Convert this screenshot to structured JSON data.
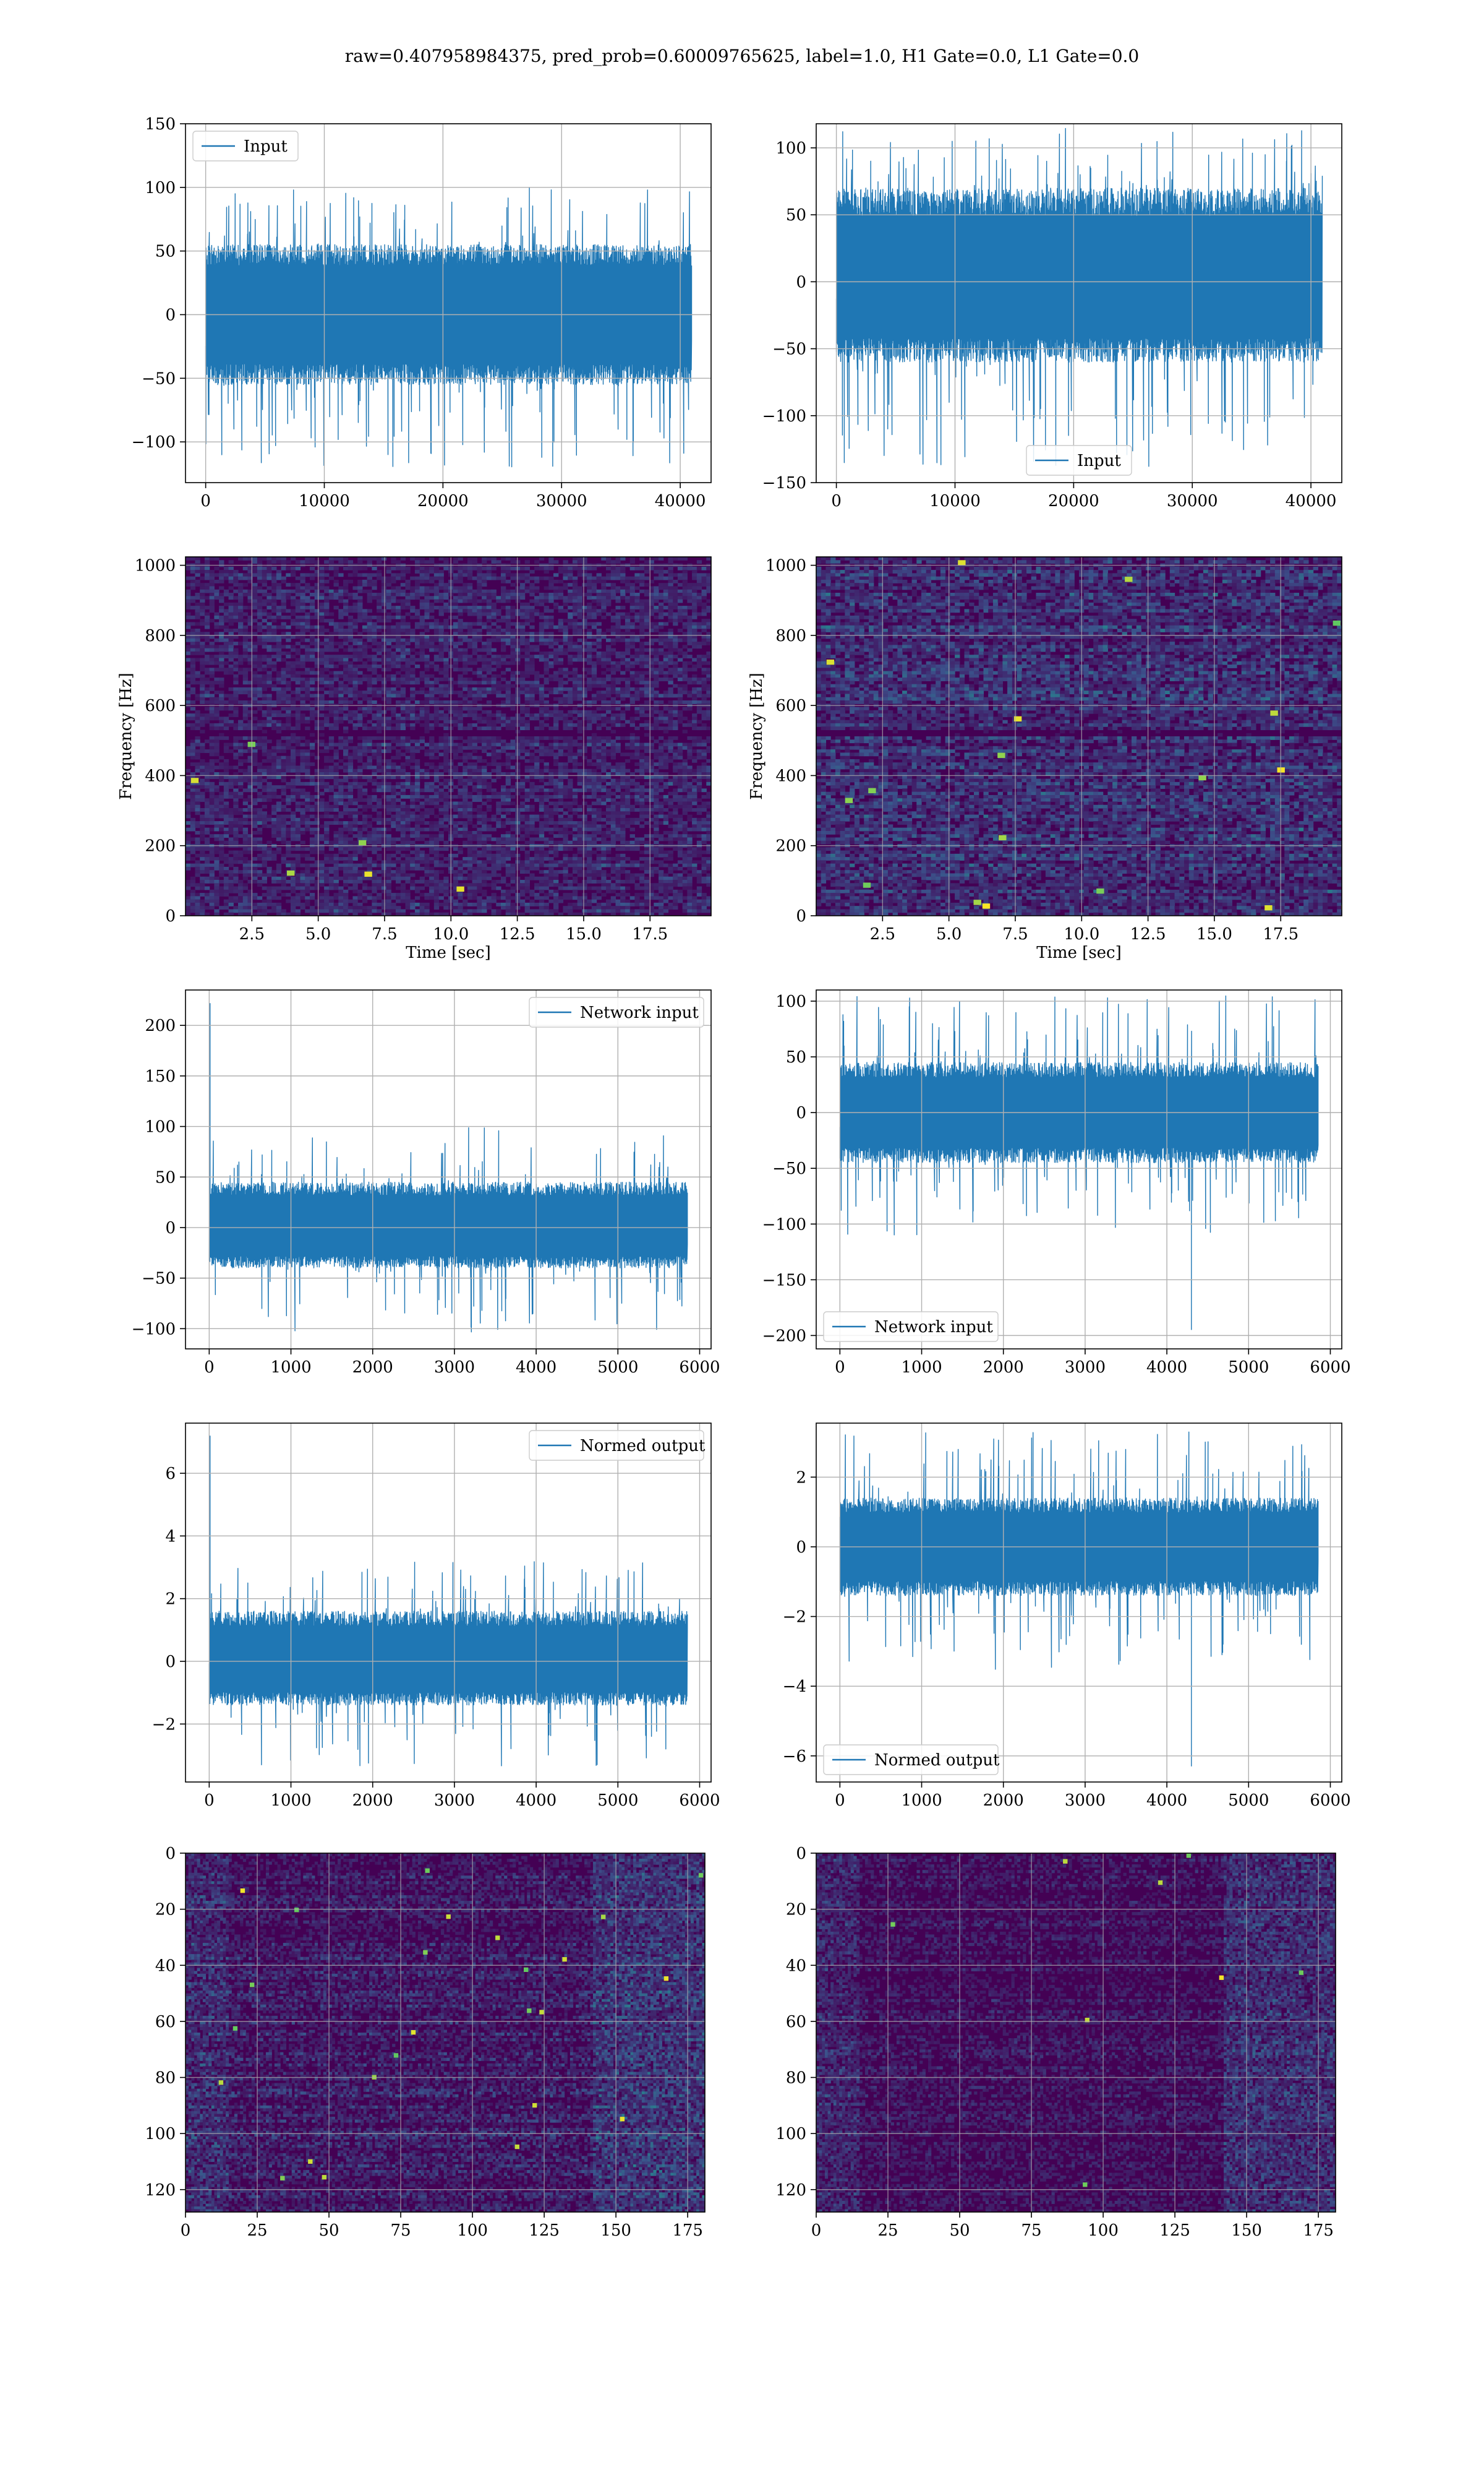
{
  "figure": {
    "suptitle": "raw=0.407958984375, pred_prob=0.60009765625, label=1.0, H1 Gate=0.0, L1 Gate=0.0"
  },
  "colors": {
    "line": "#1f77b4",
    "grid": "#b0b0b0",
    "viridis": [
      "#440154",
      "#3b528b",
      "#21918c",
      "#5ec962",
      "#fde725"
    ]
  },
  "chart_data": [
    {
      "id": "r0c0",
      "type": "line",
      "title": "",
      "xlabel": "",
      "ylabel": "",
      "legend": "Input",
      "legend_loc": "top-left",
      "xlim": [
        -1700,
        42600
      ],
      "ylim": [
        -132,
        150
      ],
      "xticks": [
        0,
        10000,
        20000,
        30000,
        40000
      ],
      "yticks": [
        -100,
        -50,
        0,
        50,
        100,
        150
      ],
      "x_range": [
        0,
        40960
      ],
      "n": 1600,
      "band": [
        -55,
        55
      ],
      "peaks": [
        100,
        -120
      ],
      "spikes": [],
      "seed": 11
    },
    {
      "id": "r0c1",
      "type": "line",
      "title": "",
      "xlabel": "",
      "ylabel": "",
      "legend": "Input",
      "legend_loc": "bottom-center",
      "xlim": [
        -1700,
        42600
      ],
      "ylim": [
        -150,
        118
      ],
      "xticks": [
        0,
        10000,
        20000,
        30000,
        40000
      ],
      "yticks": [
        -150,
        -100,
        -50,
        0,
        50,
        100
      ],
      "x_range": [
        0,
        40960
      ],
      "n": 1600,
      "band": [
        -60,
        70
      ],
      "peaks": [
        115,
        -138
      ],
      "spikes": [],
      "seed": 23
    },
    {
      "id": "r1c0",
      "type": "heatmap",
      "title": "",
      "xlabel": "Time [sec]",
      "ylabel": "Frequency [Hz]",
      "xlim": [
        0,
        19.8
      ],
      "ylim": [
        0,
        1024
      ],
      "xticks": [
        2.5,
        5.0,
        7.5,
        10.0,
        12.5,
        15.0,
        17.5
      ],
      "yticks": [
        0,
        200,
        400,
        600,
        800,
        1000
      ],
      "nx": 110,
      "ny": 110,
      "level": 0.22,
      "hotspots": 6,
      "bands": [
        0.48,
        0.49
      ],
      "seed": 31
    },
    {
      "id": "r1c1",
      "type": "heatmap",
      "title": "",
      "xlabel": "Time [sec]",
      "ylabel": "Frequency [Hz]",
      "xlim": [
        0,
        19.8
      ],
      "ylim": [
        0,
        1024
      ],
      "xticks": [
        2.5,
        5.0,
        7.5,
        10.0,
        12.5,
        15.0,
        17.5
      ],
      "yticks": [
        0,
        200,
        400,
        600,
        800,
        1000
      ],
      "nx": 110,
      "ny": 110,
      "level": 0.32,
      "hotspots": 18,
      "bands": [
        0.48,
        0.49
      ],
      "seed": 47
    },
    {
      "id": "r2c0",
      "type": "line",
      "title": "",
      "xlabel": "",
      "ylabel": "",
      "legend": "Network input",
      "legend_loc": "top-right",
      "xlim": [
        -290,
        6140
      ],
      "ylim": [
        -120,
        235
      ],
      "xticks": [
        0,
        1000,
        2000,
        3000,
        4000,
        5000,
        6000
      ],
      "yticks": [
        -100,
        -50,
        0,
        50,
        100,
        150,
        200
      ],
      "x_range": [
        0,
        5850
      ],
      "n": 1400,
      "band": [
        -40,
        45
      ],
      "peaks": [
        100,
        -105
      ],
      "spikes": [
        [
          10,
          222
        ]
      ],
      "seed": 53
    },
    {
      "id": "r2c1",
      "type": "line",
      "title": "",
      "xlabel": "",
      "ylabel": "",
      "legend": "Network input",
      "legend_loc": "bottom-left",
      "xlim": [
        -290,
        6140
      ],
      "ylim": [
        -212,
        110
      ],
      "xticks": [
        0,
        1000,
        2000,
        3000,
        4000,
        5000,
        6000
      ],
      "yticks": [
        -200,
        -150,
        -100,
        -50,
        0,
        50,
        100
      ],
      "x_range": [
        0,
        5850
      ],
      "n": 1400,
      "band": [
        -45,
        45
      ],
      "peaks": [
        105,
        -110
      ],
      "spikes": [
        [
          4300,
          -195
        ]
      ],
      "seed": 67
    },
    {
      "id": "r3c0",
      "type": "line",
      "title": "",
      "xlabel": "",
      "ylabel": "",
      "legend": "Normed output",
      "legend_loc": "top-right",
      "xlim": [
        -290,
        6140
      ],
      "ylim": [
        -3.85,
        7.6
      ],
      "xticks": [
        0,
        1000,
        2000,
        3000,
        4000,
        5000,
        6000
      ],
      "yticks": [
        -2,
        0,
        2,
        4,
        6
      ],
      "x_range": [
        0,
        5850
      ],
      "n": 1400,
      "band": [
        -1.4,
        1.6
      ],
      "peaks": [
        3.2,
        -3.4
      ],
      "spikes": [
        [
          10,
          7.2
        ]
      ],
      "seed": 79
    },
    {
      "id": "r3c1",
      "type": "line",
      "title": "",
      "xlabel": "",
      "ylabel": "",
      "legend": "Normed output",
      "legend_loc": "bottom-left",
      "xlim": [
        -290,
        6140
      ],
      "ylim": [
        -6.75,
        3.55
      ],
      "xticks": [
        0,
        1000,
        2000,
        3000,
        4000,
        5000,
        6000
      ],
      "yticks": [
        -6,
        -4,
        -2,
        0,
        2
      ],
      "x_range": [
        0,
        5850
      ],
      "n": 1400,
      "band": [
        -1.4,
        1.4
      ],
      "peaks": [
        3.4,
        -3.6
      ],
      "spikes": [
        [
          4300,
          -6.3
        ]
      ],
      "seed": 83
    },
    {
      "id": "r4c0",
      "type": "heatmap",
      "title": "",
      "xlabel": "",
      "ylabel": "",
      "inverted_y": true,
      "xlim": [
        0,
        181
      ],
      "ylim": [
        128,
        0
      ],
      "xticks": [
        0,
        25,
        50,
        75,
        100,
        125,
        150,
        175
      ],
      "yticks": [
        0,
        20,
        40,
        60,
        80,
        100,
        120
      ],
      "nx": 181,
      "ny": 128,
      "level": 0.28,
      "hotspots": 25,
      "bands": [],
      "seed": 97
    },
    {
      "id": "r4c1",
      "type": "heatmap",
      "title": "",
      "xlabel": "",
      "ylabel": "",
      "inverted_y": true,
      "xlim": [
        0,
        181
      ],
      "ylim": [
        128,
        0
      ],
      "xticks": [
        0,
        25,
        50,
        75,
        100,
        125,
        150,
        175
      ],
      "yticks": [
        0,
        20,
        40,
        60,
        80,
        100,
        120
      ],
      "nx": 181,
      "ny": 128,
      "level": 0.2,
      "hotspots": 8,
      "bands": [],
      "seed": 101
    }
  ]
}
